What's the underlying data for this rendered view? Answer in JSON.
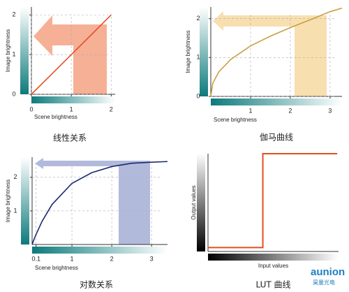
{
  "chart_data": [
    {
      "type": "line",
      "caption": "线性关系",
      "xlabel": "Scene brightness",
      "ylabel": "Image brightness",
      "x": [
        0,
        2
      ],
      "series": [
        {
          "color": "#e0502a",
          "values": [
            0,
            2
          ]
        }
      ],
      "xlim": [
        0,
        2.1
      ],
      "ylim": [
        0,
        2.2
      ],
      "xticks": [
        0,
        1,
        2
      ],
      "yticks": [
        0,
        1,
        2
      ]
    },
    {
      "type": "line",
      "caption": "伽马曲线",
      "xlabel": "Scene brightness",
      "ylabel": "Image brightness",
      "x": [
        0,
        0.05,
        0.2,
        0.5,
        1,
        1.5,
        2,
        2.5,
        3,
        3.3
      ],
      "series": [
        {
          "color": "#c8a040",
          "values": [
            0,
            0.34,
            0.63,
            0.95,
            1.3,
            1.55,
            1.77,
            1.97,
            2.18,
            2.27
          ]
        }
      ],
      "xlim": [
        0,
        3.3
      ],
      "ylim": [
        0,
        2.3
      ],
      "xticks": [
        1,
        2,
        3
      ],
      "yticks": [
        0,
        1,
        2
      ]
    },
    {
      "type": "line",
      "caption": "对数关系",
      "xlabel": "Scene brightness",
      "ylabel": "Image brightness",
      "x": [
        0,
        0.05,
        0.1,
        0.25,
        0.5,
        1,
        1.5,
        2,
        2.5,
        3,
        3.4
      ],
      "series": [
        {
          "color": "#1a2a6c",
          "values": [
            0,
            0.16,
            0.3,
            0.69,
            1.19,
            1.82,
            2.14,
            2.32,
            2.42,
            2.45,
            2.47
          ]
        }
      ],
      "xlim": [
        0,
        3.4
      ],
      "ylim": [
        0,
        2.6
      ],
      "xticks": [
        0.1,
        1,
        2,
        3
      ],
      "yticks": [
        1,
        2
      ]
    },
    {
      "type": "line",
      "caption": "LUT 曲线",
      "xlabel": "Input values",
      "ylabel": "Output values",
      "x": [
        0,
        0.42,
        0.42,
        0.99
      ],
      "series": [
        {
          "color": "#e05020",
          "values": [
            0.04,
            0.04,
            1,
            1
          ]
        }
      ],
      "xlim": [
        0,
        1
      ],
      "ylim": [
        0,
        1
      ],
      "xticks": [],
      "yticks": [],
      "gray": true
    }
  ],
  "watermark": {
    "brand": "aunion",
    "name": "昊量光电"
  }
}
